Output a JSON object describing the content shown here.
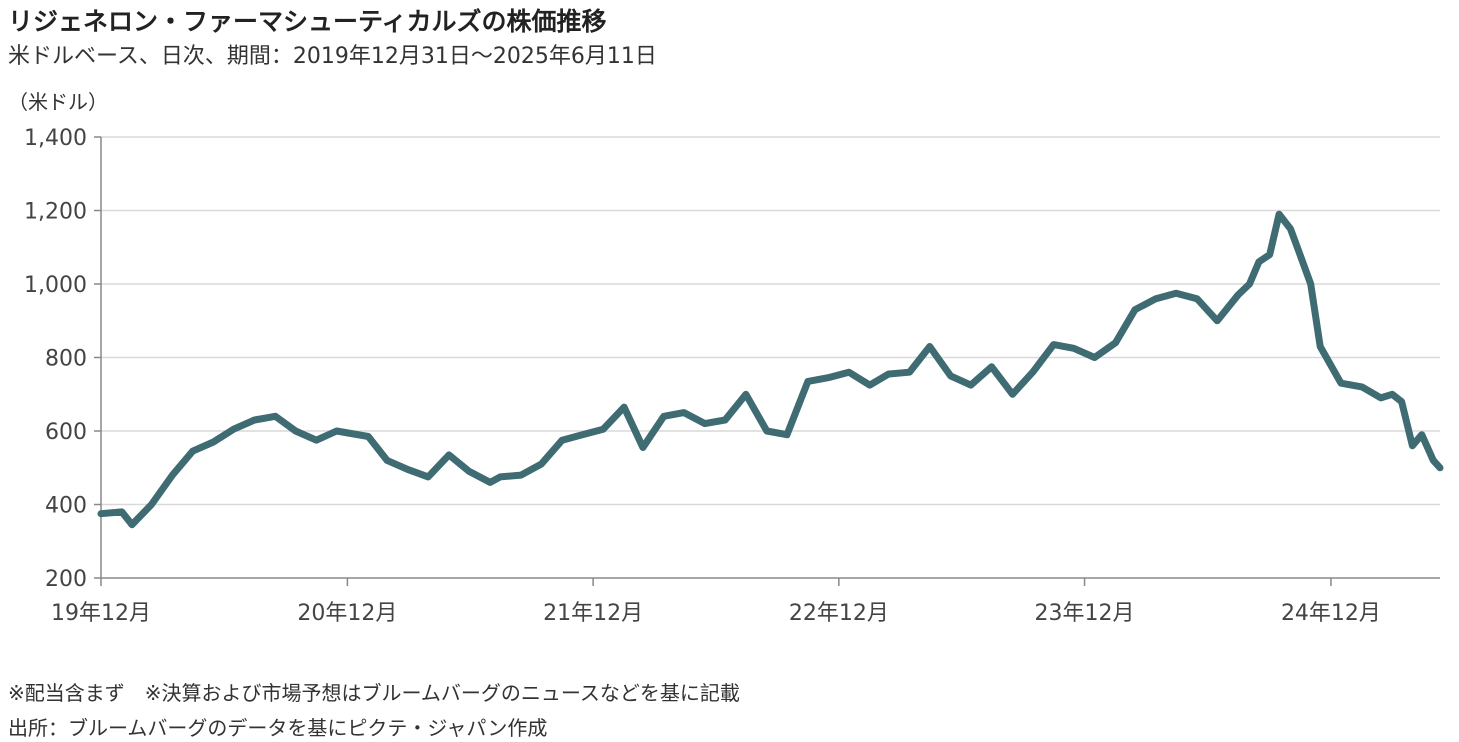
{
  "chart_data": {
    "type": "line",
    "title": "リジェネロン・ファーマシューティカルズの株価推移",
    "subtitle": "米ドルベース、日次、期間：2019年12月31日～2025年6月11日",
    "ylabel": "（米ドル）",
    "xlabel": "",
    "ylim": [
      200,
      1400
    ],
    "yticks": [
      "200",
      "400",
      "600",
      "800",
      "1,000",
      "1,200",
      "1,400"
    ],
    "xticks": [
      "19年12月",
      "20年12月",
      "21年12月",
      "22年12月",
      "23年12月",
      "24年12月"
    ],
    "xlim": [
      "2019-12-31",
      "2025-06-11"
    ],
    "grid": "horizontal",
    "legend": "none",
    "line_color": "#3F6B73",
    "series": [
      {
        "x": [
          "2019-12-31",
          "2020-01-31",
          "2020-02-15",
          "2020-03-15",
          "2020-04-15",
          "2020-05-15",
          "2020-06-15",
          "2020-07-15",
          "2020-08-15",
          "2020-09-15",
          "2020-10-15",
          "2020-11-15",
          "2020-12-15",
          "2021-01-31",
          "2021-02-28",
          "2021-03-31",
          "2021-04-30",
          "2021-05-31",
          "2021-06-30",
          "2021-07-31",
          "2021-08-15",
          "2021-09-15",
          "2021-10-15",
          "2021-11-15",
          "2021-12-15",
          "2022-01-15",
          "2022-02-15",
          "2022-03-15",
          "2022-04-15",
          "2022-05-15",
          "2022-06-15",
          "2022-07-15",
          "2022-08-15",
          "2022-09-15",
          "2022-10-15",
          "2022-11-15",
          "2022-12-15",
          "2023-01-15",
          "2023-02-15",
          "2023-03-15",
          "2023-04-15",
          "2023-05-15",
          "2023-06-15",
          "2023-07-15",
          "2023-08-15",
          "2023-09-15",
          "2023-10-15",
          "2023-11-15",
          "2023-12-15",
          "2024-01-15",
          "2024-02-15",
          "2024-03-15",
          "2024-04-15",
          "2024-05-15",
          "2024-06-15",
          "2024-07-15",
          "2024-08-15",
          "2024-09-01",
          "2024-09-15",
          "2024-10-01",
          "2024-10-15",
          "2024-11-01",
          "2024-11-15",
          "2024-12-01",
          "2024-12-15",
          "2025-01-15",
          "2025-02-15",
          "2025-03-15",
          "2025-04-01",
          "2025-04-15",
          "2025-05-01",
          "2025-05-15",
          "2025-06-01",
          "2025-06-11"
        ],
        "values": [
          375,
          380,
          345,
          400,
          480,
          545,
          570,
          605,
          630,
          640,
          600,
          575,
          600,
          585,
          520,
          495,
          475,
          535,
          490,
          460,
          475,
          480,
          510,
          575,
          590,
          605,
          665,
          555,
          640,
          650,
          620,
          630,
          700,
          600,
          590,
          735,
          745,
          760,
          725,
          755,
          760,
          830,
          750,
          725,
          775,
          700,
          760,
          835,
          825,
          800,
          840,
          930,
          960,
          975,
          960,
          900,
          970,
          1000,
          1060,
          1080,
          1190,
          1150,
          1080,
          1000,
          830,
          730,
          720,
          690,
          700,
          680,
          560,
          590,
          520,
          500
        ]
      }
    ]
  }
}
